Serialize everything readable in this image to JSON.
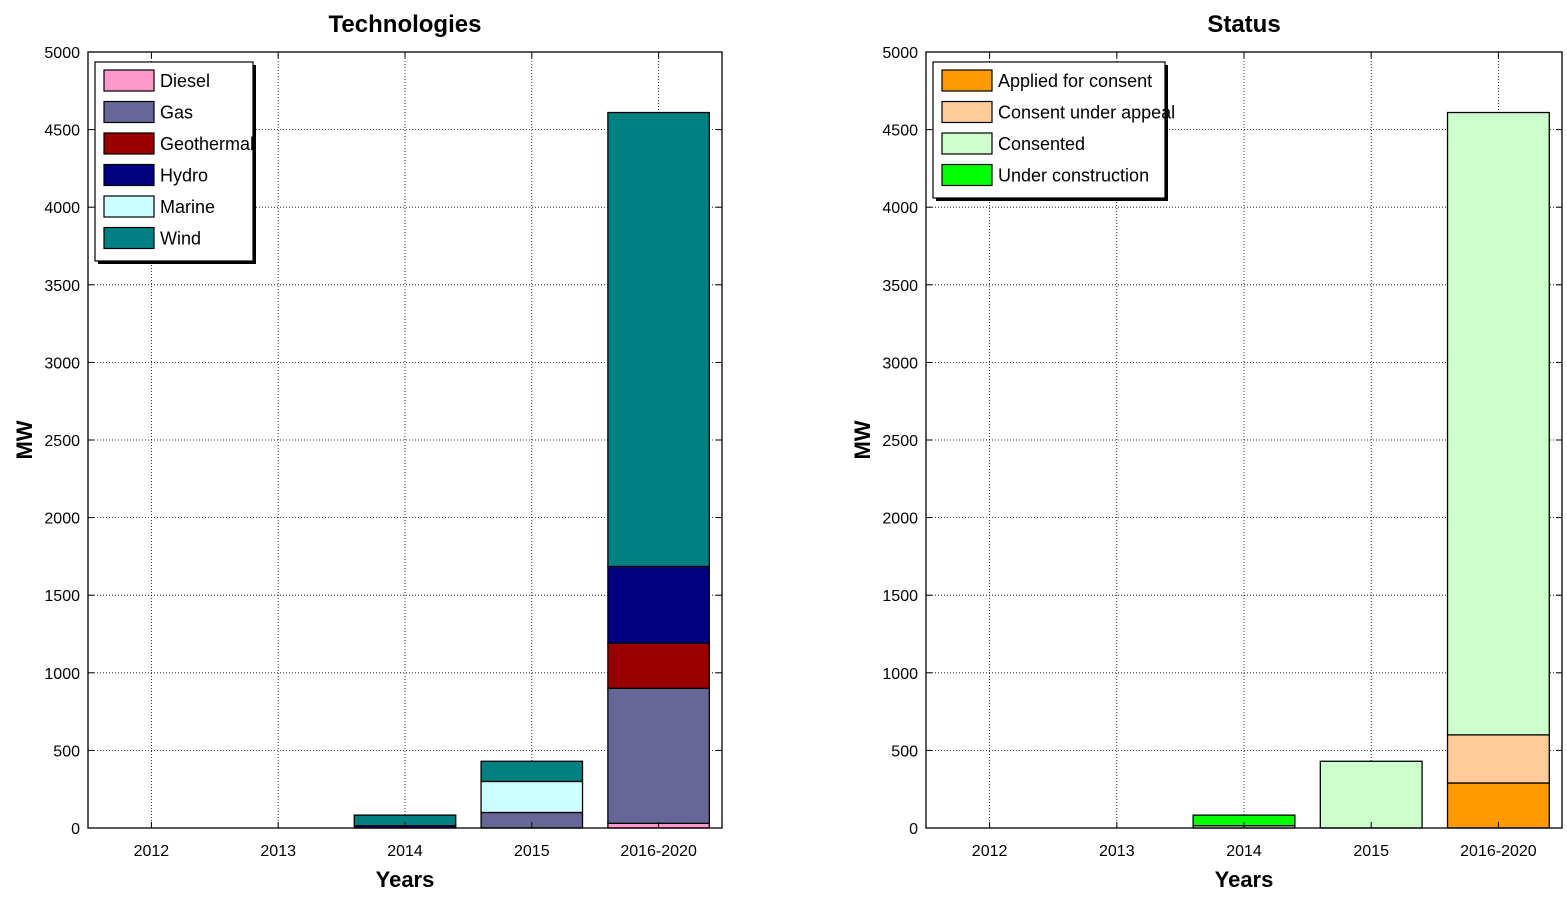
{
  "chart_data": [
    {
      "type": "bar",
      "stacked": true,
      "title": "Technologies",
      "xlabel": "Years",
      "ylabel": "MW",
      "categories": [
        "2012",
        "2013",
        "2014",
        "2015",
        "2016-2020"
      ],
      "ylim": [
        0,
        5000
      ],
      "yticks": [
        0,
        500,
        1000,
        1500,
        2000,
        2500,
        3000,
        3500,
        4000,
        4500,
        5000
      ],
      "grid": true,
      "legend_position": "top-left",
      "series": [
        {
          "name": "Diesel",
          "color": "#ff99cc",
          "values": [
            0,
            0,
            0,
            0,
            30
          ]
        },
        {
          "name": "Gas",
          "color": "#666699",
          "values": [
            0,
            0,
            0,
            100,
            870
          ]
        },
        {
          "name": "Geothermal",
          "color": "#990000",
          "values": [
            0,
            0,
            0,
            0,
            290
          ]
        },
        {
          "name": "Hydro",
          "color": "#000080",
          "values": [
            0,
            0,
            15,
            0,
            495
          ]
        },
        {
          "name": "Marine",
          "color": "#ccffff",
          "values": [
            0,
            0,
            0,
            200,
            0
          ]
        },
        {
          "name": "Wind",
          "color": "#008080",
          "values": [
            0,
            0,
            68,
            130,
            2925
          ]
        }
      ]
    },
    {
      "type": "bar",
      "stacked": true,
      "title": "Status",
      "xlabel": "Years",
      "ylabel": "MW",
      "categories": [
        "2012",
        "2013",
        "2014",
        "2015",
        "2016-2020"
      ],
      "ylim": [
        0,
        5000
      ],
      "yticks": [
        0,
        500,
        1000,
        1500,
        2000,
        2500,
        3000,
        3500,
        4000,
        4500,
        5000
      ],
      "grid": true,
      "legend_position": "top-left",
      "series": [
        {
          "name": "Applied for consent",
          "color": "#ff9900",
          "values": [
            0,
            0,
            0,
            0,
            290
          ]
        },
        {
          "name": "Consent under appeal",
          "color": "#ffcc99",
          "values": [
            0,
            0,
            0,
            0,
            310
          ]
        },
        {
          "name": "Consented",
          "color": "#ccffcc",
          "values": [
            0,
            0,
            15,
            430,
            4010
          ]
        },
        {
          "name": "Under construction",
          "color": "#00ff00",
          "values": [
            0,
            0,
            68,
            0,
            0
          ]
        }
      ]
    }
  ]
}
